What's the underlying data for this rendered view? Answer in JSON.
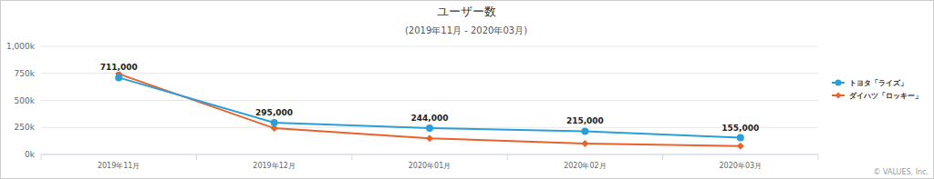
{
  "chart_data": {
    "type": "line",
    "title": "ユーザー数",
    "subtitle": "(2019年11月 - 2020年03月)",
    "credit": "© VALUES, Inc.",
    "categories": [
      "2019年11月",
      "2019年12月",
      "2020年01月",
      "2020年02月",
      "2020年03月"
    ],
    "series": [
      {
        "name": "トヨタ「ライズ」",
        "color": "#2a9ed8",
        "marker": "circle",
        "data_labels": true,
        "values": [
          711000,
          295000,
          244000,
          215000,
          155000
        ],
        "value_labels": [
          "711,000",
          "295,000",
          "244,000",
          "215,000",
          "155,000"
        ]
      },
      {
        "name": "ダイハツ「ロッキー」",
        "color": "#e8622c",
        "marker": "diamond",
        "data_labels": false,
        "values": [
          745000,
          243000,
          150000,
          101000,
          77000
        ]
      }
    ],
    "ylim": [
      0,
      1000000
    ],
    "yticks": [
      {
        "value": 0,
        "label": "0k"
      },
      {
        "value": 250000,
        "label": "250k"
      },
      {
        "value": 500000,
        "label": "500k"
      },
      {
        "value": 750000,
        "label": "750k"
      },
      {
        "value": 1000000,
        "label": "1,000k"
      }
    ],
    "grid": true,
    "legend": "right"
  }
}
